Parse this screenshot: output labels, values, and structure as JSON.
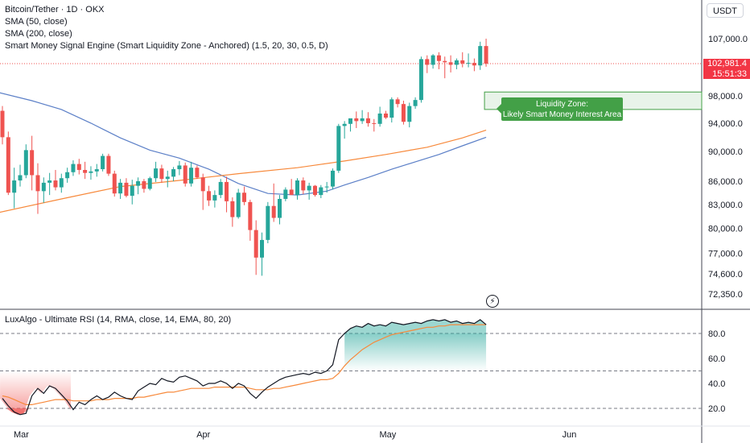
{
  "header": {
    "symbol_line": "Bitcoin/Tether · 1D · OKX",
    "indicators": [
      "SMA (50, close)",
      "SMA (200, close)",
      "Smart Money Signal Engine (Smart Liquidity Zone - Anchored) (1.5, 20, 30, 0.5, D)"
    ],
    "currency": "USDT"
  },
  "price_tag": {
    "price": "102,981.4",
    "countdown": "15:51:33"
  },
  "liquidity_zone": {
    "line1": "Liquidity Zone:",
    "line2": "Likely Smart Money Interest Area",
    "low": 96000,
    "high": 98600
  },
  "colors": {
    "up": "#26a69a",
    "down": "#ef5350",
    "sma50": "#5b7fc7",
    "sma200": "#f7893b",
    "zone": "#43a047"
  },
  "icons": {
    "alert": "lightning-bolt-icon"
  },
  "chart_data": [
    {
      "type": "candlestick",
      "title": "Bitcoin/Tether · 1D · OKX",
      "x_labels": [
        "Mar",
        "Apr",
        "May",
        "Jun"
      ],
      "x_label_index": [
        3,
        34,
        65,
        96
      ],
      "y_ticks": [
        72350,
        74600,
        77000,
        80000,
        83000,
        86000,
        90000,
        94000,
        98000,
        107000
      ],
      "y_tick_labels": [
        "72,350.0",
        "74,600.0",
        "77,000.0",
        "80,000.0",
        "83,000.0",
        "86,000.0",
        "90,000.0",
        "94,000.0",
        "98,000.0",
        "107,000.0"
      ],
      "ylim": [
        71000,
        110000
      ],
      "last_price": 102981.4,
      "candles": [
        [
          95800,
          96500,
          91000,
          92000
        ],
        [
          92000,
          92800,
          84200,
          84500
        ],
        [
          84500,
          87800,
          82500,
          86100
        ],
        [
          86100,
          88200,
          85300,
          86800
        ],
        [
          86800,
          91000,
          86400,
          90200
        ],
        [
          90200,
          92200,
          84800,
          86800
        ],
        [
          86800,
          88400,
          81800,
          84700
        ],
        [
          84700,
          86500,
          83200,
          85800
        ],
        [
          85800,
          87100,
          84200,
          86100
        ],
        [
          86100,
          87500,
          84800,
          85200
        ],
        [
          85200,
          87000,
          84500,
          86400
        ],
        [
          86400,
          87800,
          85800,
          87200
        ],
        [
          87200,
          88800,
          86700,
          88300
        ],
        [
          88300,
          89000,
          86900,
          87500
        ],
        [
          87500,
          88600,
          86300,
          87100
        ],
        [
          87100,
          88000,
          86200,
          87300
        ],
        [
          87300,
          88300,
          86600,
          87600
        ],
        [
          87600,
          89700,
          87300,
          89400
        ],
        [
          89400,
          89700,
          86700,
          87000
        ],
        [
          87000,
          87400,
          84000,
          84400
        ],
        [
          84400,
          86300,
          83700,
          85800
        ],
        [
          85800,
          86400,
          83900,
          84100
        ],
        [
          84100,
          86200,
          83000,
          85400
        ],
        [
          85400,
          86500,
          84300,
          86000
        ],
        [
          86000,
          86300,
          84500,
          85000
        ],
        [
          85000,
          86600,
          84800,
          86400
        ],
        [
          86400,
          88600,
          85900,
          87700
        ],
        [
          87700,
          88200,
          85800,
          86300
        ],
        [
          86300,
          87400,
          85200,
          86600
        ],
        [
          86600,
          87900,
          86000,
          87600
        ],
        [
          87600,
          88700,
          86800,
          88100
        ],
        [
          88100,
          88500,
          85300,
          85700
        ],
        [
          85700,
          88600,
          85300,
          87800
        ],
        [
          87800,
          88100,
          86300,
          86500
        ],
        [
          86500,
          87000,
          82300,
          84700
        ],
        [
          84700,
          85400,
          82800,
          83500
        ],
        [
          83500,
          84800,
          82600,
          84200
        ],
        [
          84200,
          86300,
          83800,
          85900
        ],
        [
          85900,
          86600,
          82000,
          83400
        ],
        [
          83400,
          83900,
          80200,
          81400
        ],
        [
          81400,
          85000,
          81200,
          84500
        ],
        [
          84500,
          85300,
          82900,
          83300
        ],
        [
          83300,
          83600,
          78500,
          79800
        ],
        [
          79800,
          81000,
          74500,
          76500
        ],
        [
          76500,
          79500,
          74400,
          78600
        ],
        [
          78600,
          83300,
          78200,
          82800
        ],
        [
          82800,
          85700,
          80800,
          81300
        ],
        [
          81300,
          84200,
          80500,
          83700
        ],
        [
          83700,
          85200,
          83400,
          84900
        ],
        [
          84900,
          86300,
          84400,
          84200
        ],
        [
          84200,
          86400,
          83600,
          86100
        ],
        [
          86100,
          86500,
          84300,
          84800
        ],
        [
          84800,
          85800,
          83600,
          85400
        ],
        [
          85400,
          85500,
          84000,
          84200
        ],
        [
          84200,
          85500,
          83800,
          85200
        ],
        [
          85200,
          85900,
          84500,
          85300
        ],
        [
          85300,
          87700,
          84900,
          87400
        ],
        [
          87400,
          93900,
          87100,
          93600
        ],
        [
          93600,
          94300,
          91800,
          93900
        ],
        [
          93900,
          94600,
          92800,
          94700
        ],
        [
          94700,
          95700,
          93300,
          94300
        ],
        [
          94300,
          95900,
          93900,
          94700
        ],
        [
          94700,
          95600,
          93500,
          94000
        ],
        [
          94000,
          94600,
          92800,
          93900
        ],
        [
          93900,
          96400,
          93500,
          95400
        ],
        [
          95400,
          95800,
          94600,
          94800
        ],
        [
          94800,
          97800,
          94100,
          97500
        ],
        [
          97500,
          97800,
          96300,
          96800
        ],
        [
          96800,
          97300,
          93800,
          94200
        ],
        [
          94200,
          97000,
          93400,
          96500
        ],
        [
          96500,
          97800,
          96100,
          97400
        ],
        [
          97400,
          104100,
          97000,
          103700
        ],
        [
          103700,
          104300,
          101500,
          102800
        ],
        [
          102800,
          104500,
          102200,
          104300
        ],
        [
          104300,
          104800,
          102100,
          103400
        ],
        [
          103400,
          104100,
          100700,
          103200
        ],
        [
          103200,
          104300,
          101600,
          102800
        ],
        [
          102800,
          103800,
          102100,
          103500
        ],
        [
          103500,
          104800,
          102400,
          103000
        ],
        [
          103000,
          104600,
          102400,
          103100
        ],
        [
          103100,
          103800,
          101800,
          102700
        ],
        [
          102700,
          106500,
          102000,
          105800
        ],
        [
          105800,
          107000,
          102500,
          102981
        ]
      ]
    },
    {
      "type": "line",
      "title": "SMA (50, close)",
      "x_index": [
        0,
        5,
        10,
        15,
        20,
        25,
        30,
        35,
        40,
        45,
        50,
        55,
        58,
        62,
        66,
        70,
        74,
        78,
        82
      ],
      "values": [
        98500,
        97300,
        96000,
        94000,
        91900,
        90200,
        89100,
        87600,
        85700,
        84400,
        84200,
        84700,
        85500,
        86500,
        87600,
        88600,
        89600,
        90800,
        92000
      ]
    },
    {
      "type": "line",
      "title": "SMA (200, close)",
      "x_index": [
        0,
        10,
        20,
        30,
        40,
        50,
        58,
        65,
        72,
        78,
        82
      ],
      "values": [
        82000,
        83700,
        85300,
        86100,
        87000,
        87800,
        88700,
        89600,
        90600,
        91900,
        93000
      ]
    },
    {
      "type": "area",
      "title": "LuxAlgo - Ultimate RSI (14, RMA, close, 14, EMA, 80, 20)",
      "y_ticks": [
        20,
        40,
        60,
        80
      ],
      "y_tick_labels": [
        "20.0",
        "40.0",
        "60.0",
        "80.0"
      ],
      "levels": [
        80,
        50,
        20
      ],
      "ylim": [
        10,
        95
      ],
      "x_index": [
        0,
        1,
        2,
        3,
        4,
        5,
        6,
        7,
        8,
        9,
        10,
        11,
        12,
        13,
        14,
        15,
        16,
        17,
        18,
        19,
        20,
        21,
        22,
        23,
        24,
        25,
        26,
        27,
        28,
        29,
        30,
        31,
        32,
        33,
        34,
        35,
        36,
        37,
        38,
        39,
        40,
        41,
        42,
        43,
        44,
        45,
        46,
        47,
        48,
        49,
        50,
        51,
        52,
        53,
        54,
        55,
        56,
        57,
        58,
        59,
        60,
        61,
        62,
        63,
        64,
        65,
        66,
        67,
        68,
        69,
        70,
        71,
        72,
        73,
        74,
        75,
        76,
        77,
        78,
        79,
        80,
        81,
        82
      ],
      "rsi": [
        28,
        22,
        17,
        15,
        16,
        30,
        36,
        32,
        38,
        36,
        31,
        26,
        19,
        25,
        23,
        27,
        30,
        27,
        29,
        33,
        30,
        28,
        27,
        34,
        37,
        40,
        39,
        44,
        42,
        41,
        45,
        46,
        44,
        42,
        38,
        40,
        40,
        42,
        40,
        36,
        40,
        38,
        32,
        28,
        33,
        37,
        40,
        43,
        45,
        46,
        47,
        48,
        47,
        49,
        48,
        50,
        55,
        75,
        80,
        84,
        86,
        85,
        88,
        86,
        87,
        86,
        89,
        88,
        87,
        88,
        89,
        88,
        90,
        91,
        90,
        91,
        89,
        90,
        88,
        89,
        88,
        91,
        87
      ],
      "signal": [
        30,
        29,
        27,
        25,
        23,
        23,
        24,
        25,
        26,
        27,
        27,
        27,
        26,
        26,
        26,
        26,
        27,
        27,
        27,
        28,
        28,
        28,
        28,
        29,
        29,
        30,
        31,
        32,
        33,
        33,
        34,
        35,
        36,
        36,
        36,
        36,
        37,
        37,
        37,
        37,
        37,
        37,
        36,
        35,
        35,
        35,
        36,
        36,
        37,
        38,
        39,
        40,
        41,
        42,
        43,
        43,
        44,
        48,
        54,
        59,
        63,
        67,
        70,
        73,
        75,
        77,
        79,
        80,
        81,
        82,
        83,
        84,
        85,
        85,
        86,
        86,
        87,
        87,
        87,
        87,
        87,
        87,
        87
      ]
    }
  ]
}
